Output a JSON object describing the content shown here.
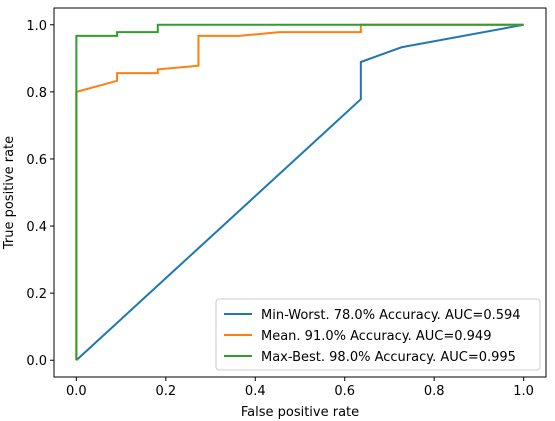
{
  "chart_data": {
    "type": "line",
    "title": "",
    "xlabel": "False positive rate",
    "ylabel": "True positive rate",
    "xlim": [
      -0.05,
      1.05
    ],
    "ylim": [
      -0.05,
      1.05
    ],
    "xticks": [
      "0.0",
      "0.2",
      "0.4",
      "0.6",
      "0.8",
      "1.0"
    ],
    "yticks": [
      "0.0",
      "0.2",
      "0.4",
      "0.6",
      "0.8",
      "1.0"
    ],
    "grid": false,
    "legend_position": "bottom-right",
    "series": [
      {
        "name": "Min-Worst. 78.0% Accuracy. AUC=0.594",
        "color": "#1f77b4",
        "x": [
          0.0,
          0.636,
          0.636,
          0.727,
          1.0
        ],
        "y": [
          0.0,
          0.778,
          0.889,
          0.933,
          1.0
        ]
      },
      {
        "name": "Mean. 91.0% Accuracy. AUC=0.949",
        "color": "#ff7f0e",
        "x": [
          0.0,
          0.0,
          0.091,
          0.091,
          0.182,
          0.182,
          0.273,
          0.273,
          0.364,
          0.455,
          0.636,
          0.636,
          1.0
        ],
        "y": [
          0.0,
          0.8,
          0.833,
          0.856,
          0.856,
          0.867,
          0.878,
          0.967,
          0.967,
          0.978,
          0.978,
          1.0,
          1.0
        ]
      },
      {
        "name": "Max-Best. 98.0% Accuracy. AUC=0.995",
        "color": "#2ca02c",
        "x": [
          0.0,
          0.0,
          0.091,
          0.091,
          0.182,
          0.182,
          1.0
        ],
        "y": [
          0.0,
          0.967,
          0.967,
          0.978,
          0.978,
          1.0,
          1.0
        ]
      }
    ]
  }
}
